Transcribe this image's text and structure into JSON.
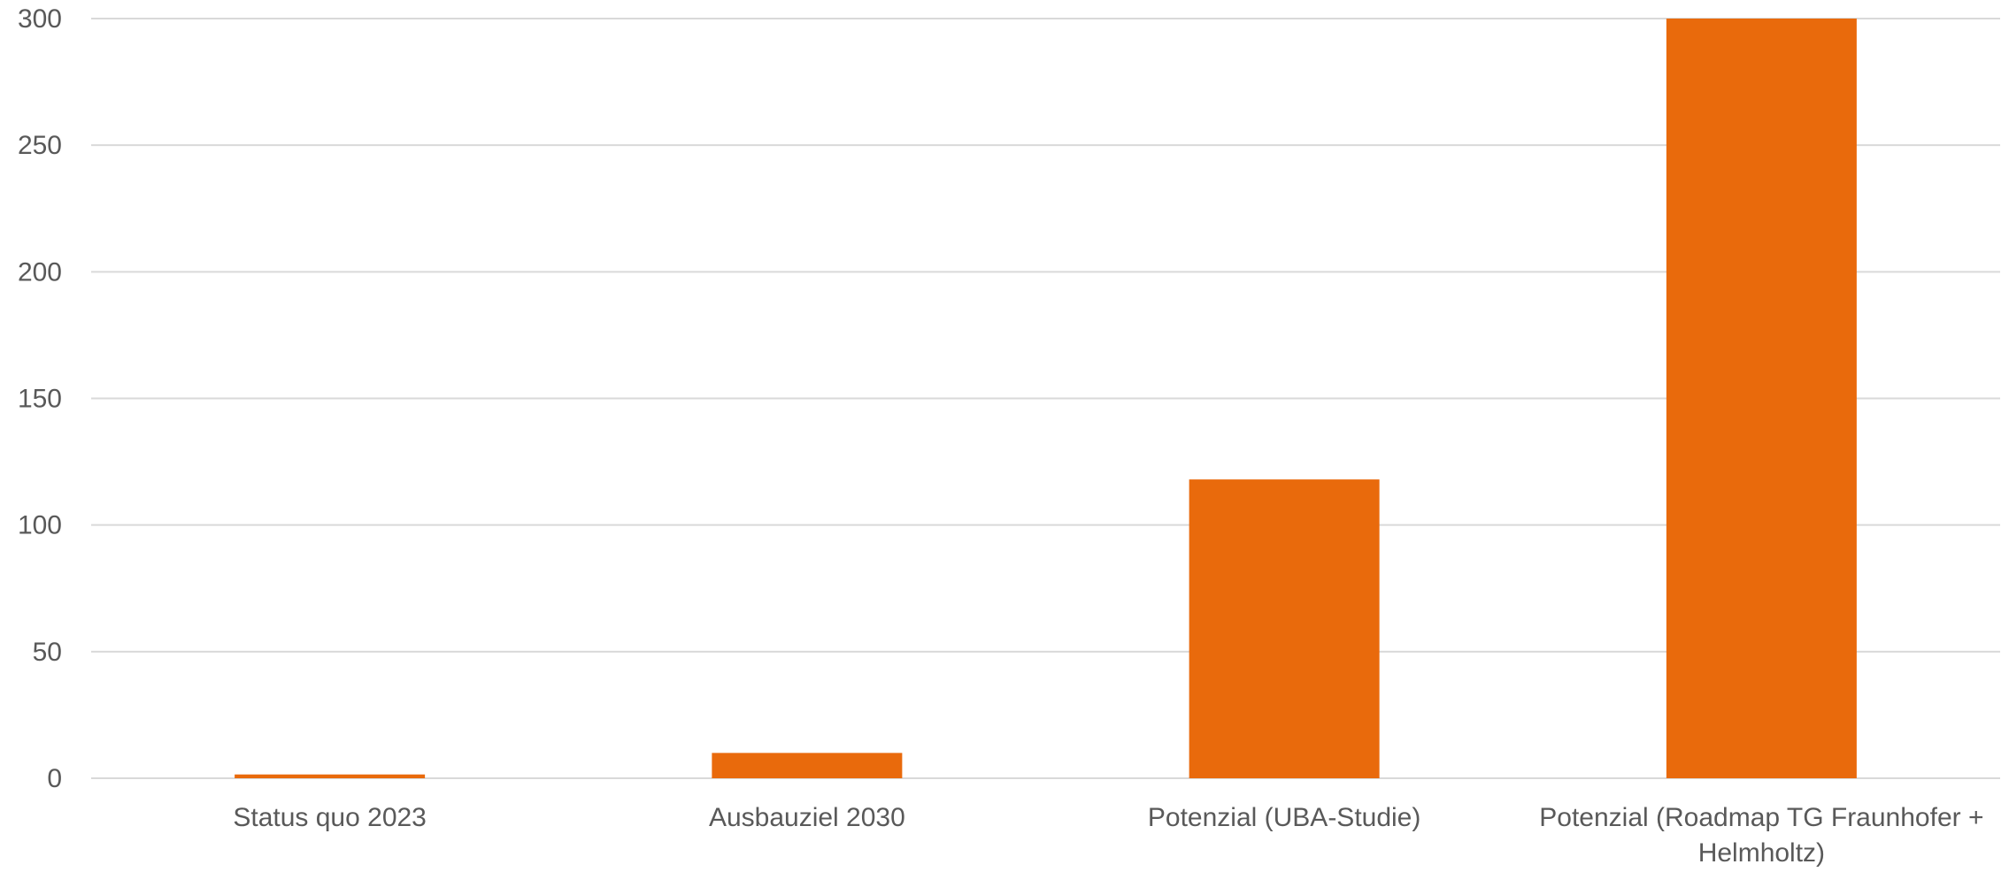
{
  "chart_data": {
    "type": "bar",
    "title": "",
    "xlabel": "",
    "ylabel": "",
    "categories": [
      "Status quo 2023",
      "Ausbauziel 2030",
      "Potenzial (UBA-Studie)",
      "Potenzial (Roadmap TG Fraunhofer + Helmholtz)"
    ],
    "category_lines": [
      [
        "Status quo 2023"
      ],
      [
        "Ausbauziel 2030"
      ],
      [
        "Potenzial (UBA-Studie)"
      ],
      [
        "Potenzial (Roadmap TG Fraunhofer +",
        "Helmholtz)"
      ]
    ],
    "values": [
      1.5,
      10,
      118,
      300
    ],
    "ylim": [
      0,
      300
    ],
    "yticks": [
      0,
      50,
      100,
      150,
      200,
      250,
      300
    ],
    "ytick_labels": [
      "0",
      "50",
      "100",
      "150",
      "200",
      "250",
      "300"
    ],
    "grid": true,
    "legend": "none",
    "colors": {
      "bar": "#E96A0C",
      "grid": "#D9D9D9",
      "tick_text": "#595959"
    }
  }
}
